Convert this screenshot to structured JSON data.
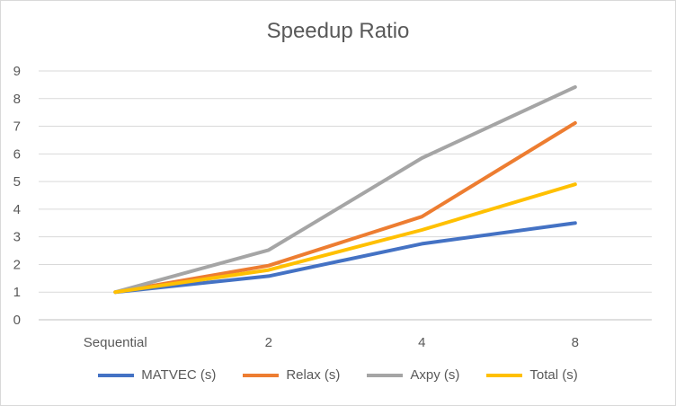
{
  "chart_data": {
    "type": "line",
    "title": "Speedup Ratio",
    "categories": [
      "Sequential",
      "2",
      "4",
      "8"
    ],
    "ylim": [
      0,
      9
    ],
    "yticks": [
      "0",
      "1",
      "2",
      "3",
      "4",
      "5",
      "6",
      "7",
      "8",
      "9"
    ],
    "grid": true,
    "legend_position": "bottom",
    "series": [
      {
        "name": "MATVEC (s)",
        "color": "#4472C4",
        "values": [
          1,
          1.58,
          2.75,
          3.5
        ]
      },
      {
        "name": "Relax (s)",
        "color": "#ED7D31",
        "values": [
          1,
          1.96,
          3.73,
          7.12
        ]
      },
      {
        "name": "Axpy (s)",
        "color": "#A5A5A5",
        "values": [
          1,
          2.52,
          5.85,
          8.42
        ]
      },
      {
        "name": "Total (s)",
        "color": "#FFC000",
        "values": [
          1,
          1.8,
          3.25,
          4.9
        ]
      }
    ]
  }
}
